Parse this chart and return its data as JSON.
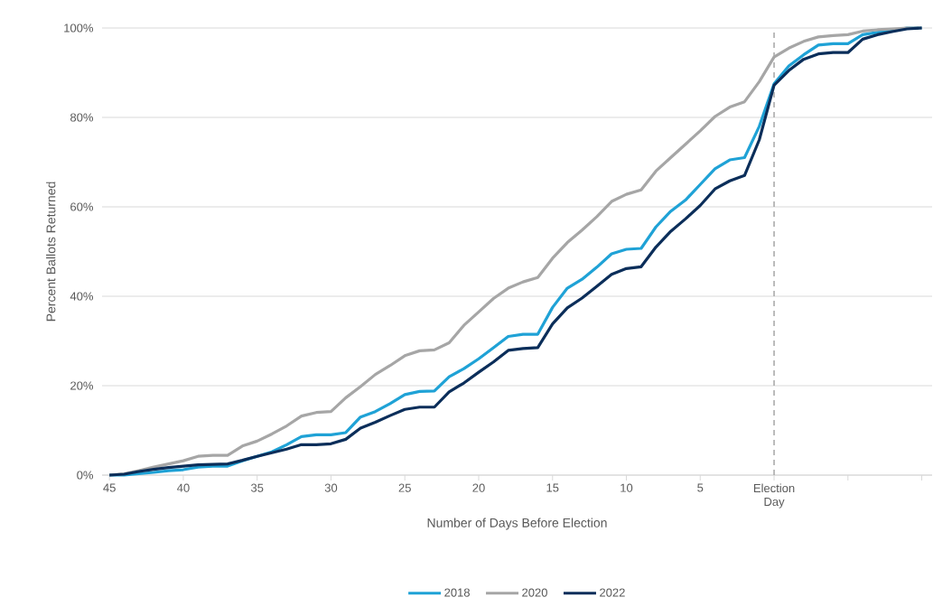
{
  "chart_data": {
    "type": "line",
    "xlabel": "Number of Days Before Election",
    "ylabel": "Percent Ballots Returned",
    "x": [
      -45,
      -44,
      -43,
      -42,
      -41,
      -40,
      -39,
      -38,
      -37,
      -36,
      -35,
      -34,
      -33,
      -32,
      -31,
      -30,
      -29,
      -28,
      -27,
      -26,
      -25,
      -24,
      -23,
      -22,
      -21,
      -20,
      -19,
      -18,
      -17,
      -16,
      -15,
      -14,
      -13,
      -12,
      -11,
      -10,
      -9,
      -8,
      -7,
      -6,
      -5,
      -4,
      -3,
      -2,
      -1,
      0,
      1,
      2,
      3,
      4,
      5,
      6,
      7,
      8,
      9,
      10
    ],
    "series": [
      {
        "name": "2018",
        "color": "#1fa2d6",
        "values": [
          0,
          0,
          0.3,
          0.6,
          1,
          1.2,
          1.8,
          2,
          2,
          3.2,
          4.2,
          5.2,
          6.8,
          8.6,
          9,
          9,
          9.5,
          13,
          14.2,
          16,
          18,
          18.7,
          18.8,
          22,
          23.8,
          26,
          28.5,
          31,
          31.5,
          31.5,
          37.5,
          41.8,
          43.8,
          46.5,
          49.5,
          50.5,
          50.7,
          55.5,
          59,
          61.5,
          65,
          68.5,
          70.5,
          71,
          78,
          87.5,
          91.5,
          94,
          96.2,
          96.5,
          96.5,
          98.5,
          99,
          99.5,
          100,
          100
        ]
      },
      {
        "name": "2020",
        "color": "#a6a6a6",
        "values": [
          0,
          0.3,
          1,
          1.8,
          2.5,
          3.2,
          4.2,
          4.4,
          4.4,
          6.5,
          7.6,
          9.2,
          11,
          13.2,
          14,
          14.2,
          17.3,
          19.8,
          22.5,
          24.5,
          26.7,
          27.8,
          28,
          29.6,
          33.5,
          36.5,
          39.5,
          41.8,
          43.2,
          44.2,
          48.5,
          52,
          54.8,
          57.8,
          61.2,
          62.8,
          63.8,
          68,
          71,
          74,
          77,
          80.2,
          82.3,
          83.5,
          88,
          93.5,
          95.5,
          97,
          98,
          98.3,
          98.5,
          99.3,
          99.6,
          99.8,
          100,
          100
        ]
      },
      {
        "name": "2022",
        "color": "#0b2e5a",
        "values": [
          0,
          0.2,
          0.8,
          1.3,
          1.7,
          2,
          2.3,
          2.4,
          2.5,
          3.3,
          4.2,
          5,
          5.8,
          6.8,
          6.8,
          7,
          8,
          10.5,
          11.8,
          13.3,
          14.7,
          15.2,
          15.2,
          18.6,
          20.6,
          23,
          25.3,
          27.9,
          28.3,
          28.5,
          33.8,
          37.4,
          39.6,
          42.2,
          44.9,
          46.2,
          46.6,
          51,
          54.5,
          57.3,
          60.3,
          64,
          65.8,
          67,
          75,
          87.2,
          90.5,
          93,
          94.2,
          94.5,
          94.5,
          97.5,
          98.5,
          99.2,
          99.8,
          100
        ]
      }
    ],
    "xlim": [
      -45.5,
      10.7
    ],
    "xticks": [
      {
        "value": -45,
        "label": "45"
      },
      {
        "value": -40,
        "label": "40"
      },
      {
        "value": -35,
        "label": "35"
      },
      {
        "value": -30,
        "label": "30"
      },
      {
        "value": -25,
        "label": "25"
      },
      {
        "value": -20,
        "label": "20"
      },
      {
        "value": -15,
        "label": "15"
      },
      {
        "value": -10,
        "label": "10"
      },
      {
        "value": -5,
        "label": "5"
      },
      {
        "value": 0,
        "label": "Election Day"
      },
      {
        "value": 5,
        "label": null
      },
      {
        "value": 10,
        "label": null
      }
    ],
    "ylim": [
      0,
      100
    ],
    "yticks": [
      {
        "value": 0,
        "label": "0%"
      },
      {
        "value": 20,
        "label": "20%"
      },
      {
        "value": 40,
        "label": "40%"
      },
      {
        "value": 60,
        "label": "60%"
      },
      {
        "value": 80,
        "label": "80%"
      },
      {
        "value": 100,
        "label": "100%"
      }
    ],
    "grid": "y",
    "legend": "bottom",
    "marker": "none",
    "line_style": "solid",
    "ref_lines": [
      {
        "axis": "x",
        "value": 0,
        "color": "#a6a6a6",
        "line_style": "dashed"
      }
    ]
  }
}
